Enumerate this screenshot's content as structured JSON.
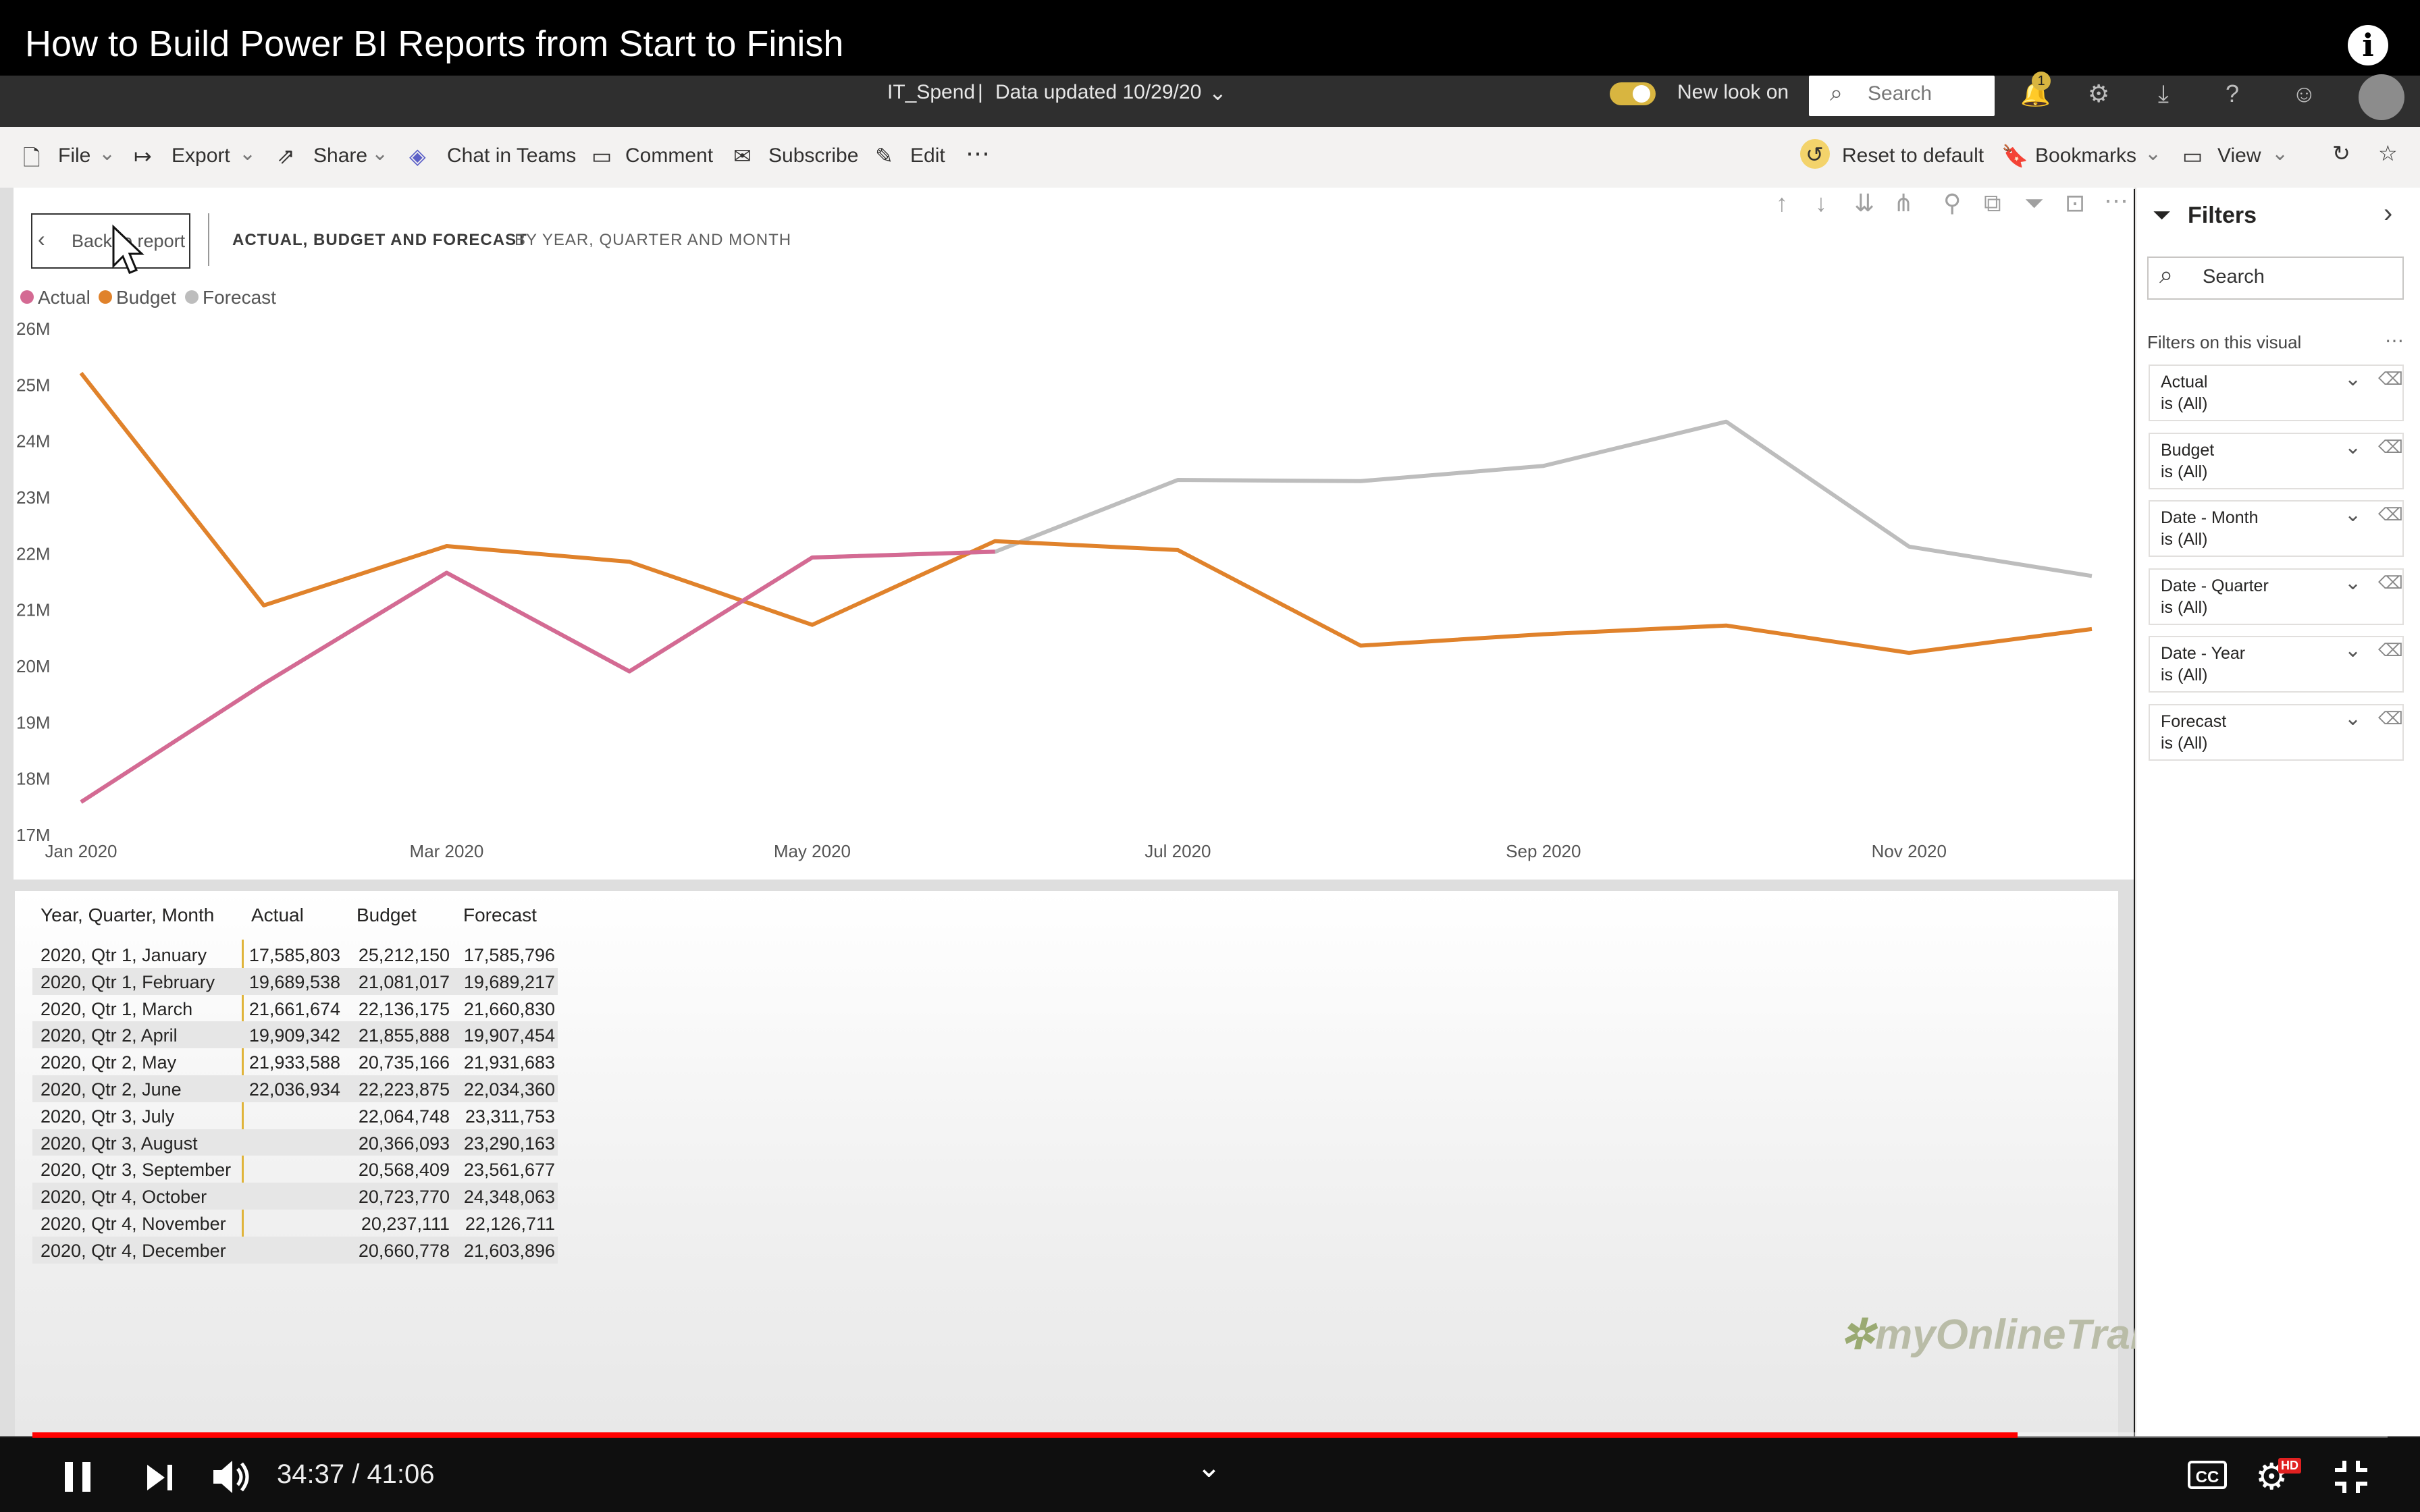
{
  "video": {
    "title": "How to Build Power BI Reports from Start to Finish",
    "time": "34:37 / 41:06",
    "progress": 0.843,
    "hd_badge": "HD"
  },
  "pbi_header": {
    "dataset": "IT_Spend",
    "separator": "|",
    "data_updated": "Data updated 10/29/20",
    "new_look": "New look on",
    "search_placeholder": "Search",
    "notification_count": "1"
  },
  "commands": {
    "file": "File",
    "export": "Export",
    "share": "Share",
    "chat": "Chat in Teams",
    "comment": "Comment",
    "subscribe": "Subscribe",
    "edit": "Edit",
    "reset": "Reset to default",
    "bookmarks": "Bookmarks",
    "view": "View"
  },
  "visual": {
    "back_label": "Back to report",
    "title": "ACTUAL, BUDGET AND FORECAST",
    "subtitle": "BY YEAR, QUARTER AND MONTH"
  },
  "chart_data": {
    "type": "line",
    "x": [
      "Jan 2020",
      "Feb 2020",
      "Mar 2020",
      "Apr 2020",
      "May 2020",
      "Jun 2020",
      "Jul 2020",
      "Aug 2020",
      "Sep 2020",
      "Oct 2020",
      "Nov 2020",
      "Dec 2020"
    ],
    "x_tick_labels": [
      "Jan 2020",
      "Mar 2020",
      "May 2020",
      "Jul 2020",
      "Sep 2020",
      "Nov 2020"
    ],
    "y_tick_labels": [
      "26M",
      "25M",
      "24M",
      "23M",
      "22M",
      "21M",
      "20M",
      "19M",
      "18M",
      "17M"
    ],
    "ylim": [
      17000000,
      26000000
    ],
    "legend_position": "top-left",
    "series": [
      {
        "name": "Actual",
        "color": "#d46a93",
        "values": [
          17585803,
          19689538,
          21661674,
          19909342,
          21933588,
          22036934,
          null,
          null,
          null,
          null,
          null,
          null
        ]
      },
      {
        "name": "Budget",
        "color": "#e0822b",
        "values": [
          25212150,
          21081017,
          22136175,
          21855888,
          20735166,
          22223875,
          22064748,
          20366093,
          20568409,
          20723770,
          20237111,
          20660778
        ]
      },
      {
        "name": "Forecast",
        "color": "#bdbdbd",
        "values": [
          17585796,
          19689217,
          21660830,
          19907454,
          21931683,
          22034360,
          23311753,
          23290163,
          23561677,
          24348063,
          22126711,
          21603896
        ]
      }
    ]
  },
  "table": {
    "headers": [
      "Year, Quarter, Month",
      "Actual",
      "Budget",
      "Forecast"
    ],
    "rows": [
      [
        "2020, Qtr 1, January",
        "17,585,803",
        "25,212,150",
        "17,585,796"
      ],
      [
        "2020, Qtr 1, February",
        "19,689,538",
        "21,081,017",
        "19,689,217"
      ],
      [
        "2020, Qtr 1, March",
        "21,661,674",
        "22,136,175",
        "21,660,830"
      ],
      [
        "2020, Qtr 2, April",
        "19,909,342",
        "21,855,888",
        "19,907,454"
      ],
      [
        "2020, Qtr 2, May",
        "21,933,588",
        "20,735,166",
        "21,931,683"
      ],
      [
        "2020, Qtr 2, June",
        "22,036,934",
        "22,223,875",
        "22,034,360"
      ],
      [
        "2020, Qtr 3, July",
        "",
        "22,064,748",
        "23,311,753"
      ],
      [
        "2020, Qtr 3, August",
        "",
        "20,366,093",
        "23,290,163"
      ],
      [
        "2020, Qtr 3, September",
        "",
        "20,568,409",
        "23,561,677"
      ],
      [
        "2020, Qtr 4, October",
        "",
        "20,723,770",
        "24,348,063"
      ],
      [
        "2020, Qtr 4, November",
        "",
        "20,237,111",
        "22,126,711"
      ],
      [
        "2020, Qtr 4, December",
        "",
        "20,660,778",
        "21,603,896"
      ]
    ]
  },
  "filters": {
    "title": "Filters",
    "search_placeholder": "Search",
    "section_label": "Filters on this visual",
    "cards": [
      {
        "name": "Actual",
        "value": "is (All)"
      },
      {
        "name": "Budget",
        "value": "is (All)"
      },
      {
        "name": "Date - Month",
        "value": "is (All)"
      },
      {
        "name": "Date - Quarter",
        "value": "is (All)"
      },
      {
        "name": "Date - Year",
        "value": "is (All)"
      },
      {
        "name": "Forecast",
        "value": "is (All)"
      }
    ]
  },
  "watermark": {
    "logo_text": "myOnlineTraininghub"
  }
}
